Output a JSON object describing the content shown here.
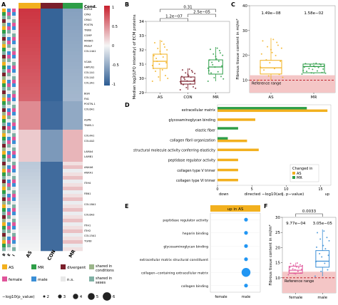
{
  "panels": {
    "A": "A",
    "B": "B",
    "C": "C",
    "D": "D",
    "E": "E",
    "F": "F"
  },
  "panel_a": {
    "cond_header": "Cond.",
    "colorbar_ticks": [
      "1",
      "0.5",
      "0",
      "-0.5",
      "-1"
    ],
    "proteins": [
      "EGFL6",
      "CPA3",
      "CMA1",
      "POSTN",
      "TNXB",
      "COMP",
      "MXRA5",
      "PRELP",
      "COL14A1",
      "",
      "VCAN",
      "HAPLN1",
      "COL1A1",
      "COL1A2",
      "COL3A1",
      "",
      "BGN",
      "FN1",
      "POSTN-1",
      "COL6A1",
      "",
      "ASPN",
      "TNXB-1",
      "",
      "COL4A1",
      "COL4A2",
      "",
      "LAMA4",
      "LAMB1",
      "",
      "ANXA6",
      "ANXA1",
      "",
      "ITIH4",
      "",
      "FBN1",
      "",
      "COL18A1",
      "",
      "COL6A3",
      "",
      "ITIH1",
      "ITIH2",
      "COL15A1",
      "TGFBI"
    ],
    "col_labels": [
      "AS",
      "CON",
      "MR"
    ],
    "row_anno_labels": [
      "B",
      "E",
      "I"
    ]
  },
  "legend": {
    "items": [
      {
        "label": "AS",
        "color": "#F2B01E"
      },
      {
        "label": "MR",
        "color": "#2E9E48"
      },
      {
        "label": "divergent",
        "color": "#7A1F2B"
      },
      {
        "label": "shared in conditions",
        "color": "#9BB58A"
      },
      {
        "label": "female",
        "color": "#E0559A"
      },
      {
        "label": "male",
        "color": "#3B8FD6"
      },
      {
        "label": "n.s.",
        "color": "#E8E8E8"
      },
      {
        "label": "shared in sexes",
        "color": "#7FB0A4"
      }
    ],
    "size_title": "−log10(p_value)",
    "size_values": [
      "2",
      "3",
      "4",
      "5",
      "6"
    ]
  },
  "chart_data": [
    {
      "panel": "B",
      "type": "box",
      "categories": [
        "AS",
        "CON",
        "MR"
      ],
      "ylabel": "Median log2(LFQ intensity) of ECM proteins",
      "ylim": [
        29,
        34
      ],
      "yticks": [
        "29",
        "30",
        "31",
        "32",
        "33",
        "34"
      ],
      "medians": [
        31.2,
        29.8,
        30.8
      ],
      "q1": [
        30.7,
        29.6,
        30.3
      ],
      "q3": [
        31.7,
        30.1,
        31.3
      ],
      "whisker_low": [
        29.8,
        29.2,
        29.8
      ],
      "whisker_high": [
        32.7,
        30.7,
        32.2
      ],
      "colors": [
        "#F2B01E",
        "#7A1F2B",
        "#2E9E48"
      ],
      "brackets": [
        {
          "from": "AS",
          "to": "CON",
          "label": "1.2e−07"
        },
        {
          "from": "CON",
          "to": "MR",
          "label": "2.5e−05"
        },
        {
          "from": "AS",
          "to": "MR",
          "label": "0.31"
        }
      ]
    },
    {
      "panel": "C",
      "type": "box",
      "categories": [
        "AS",
        "MR"
      ],
      "ylabel": "Fibrous tissue content in ml/m²",
      "ylim": [
        5,
        40
      ],
      "yticks": [
        "10",
        "20",
        "30",
        "40"
      ],
      "medians": [
        15,
        15.5
      ],
      "q1": [
        12.5,
        13
      ],
      "q3": [
        18,
        16.5
      ],
      "whisker_low": [
        10,
        12.5
      ],
      "whisker_high": [
        27,
        17
      ],
      "colors": [
        "#F2B01E",
        "#2E9E48"
      ],
      "pvalues": [
        "1.49e−08",
        "1.58e−02"
      ],
      "reference": {
        "label": "Reference range",
        "value": 10
      }
    },
    {
      "panel": "D",
      "type": "bar",
      "categories": [
        "extracellular matrix",
        "glycosaminoglycan binding",
        "elastic fiber",
        "collagen fibril organization",
        "structural molecule activity conferring elasticity",
        "peptidase regulator activity",
        "collagen type V trimer",
        "collagen type VI trimer"
      ],
      "series": [
        {
          "name": "AS",
          "values": [
            16,
            5.5,
            0,
            4.3,
            6,
            3,
            3,
            3
          ]
        },
        {
          "name": "MR",
          "values": [
            13,
            0,
            3,
            1.5,
            0,
            0,
            0,
            0
          ]
        }
      ],
      "xlabel": "directed −log10(adj. p−value)",
      "xticks": [
        "0",
        "5",
        "10",
        "15"
      ],
      "xlim": [
        0,
        16.5
      ],
      "legend_title": "Changed in",
      "direction_labels": [
        "down",
        "up"
      ]
    },
    {
      "panel": "E",
      "type": "scatter",
      "title": "up in AS",
      "categories": [
        "peptidase regulator activity",
        "heparin binding",
        "glycosaminoglycan binding",
        "extracellular matrix structural constituent",
        "collagen−containing extracellular matrix",
        "collagen binding"
      ],
      "x": [
        "female",
        "male"
      ],
      "points": [
        {
          "term": "peptidase regulator activity",
          "sex": "male",
          "size": 2
        },
        {
          "term": "heparin binding",
          "sex": "male",
          "size": 2
        },
        {
          "term": "glycosaminoglycan binding",
          "sex": "male",
          "size": 2
        },
        {
          "term": "extracellular matrix structural constituent",
          "sex": "male",
          "size": 2
        },
        {
          "term": "collagen−containing extracellular matrix",
          "sex": "male",
          "size": 6
        },
        {
          "term": "collagen binding",
          "sex": "male",
          "size": 2
        }
      ]
    },
    {
      "panel": "F",
      "type": "box",
      "categories": [
        "female",
        "male"
      ],
      "ylabel": "Fibrous tissue content in ml/m²",
      "ylim": [
        5,
        30
      ],
      "yticks": [
        "10",
        "15",
        "20",
        "25",
        "30"
      ],
      "medians": [
        12.5,
        15.5
      ],
      "q1": [
        11.5,
        13.5
      ],
      "q3": [
        13.8,
        19
      ],
      "whisker_low": [
        11,
        10.5
      ],
      "whisker_high": [
        15,
        26
      ],
      "colors": [
        "#E0559A",
        "#3B8FD6"
      ],
      "pvalues": [
        "9.77e−04",
        "3.05e−05"
      ],
      "bracket_label": "0.0033",
      "reference": {
        "label": "Reference range",
        "value": 10
      }
    }
  ]
}
